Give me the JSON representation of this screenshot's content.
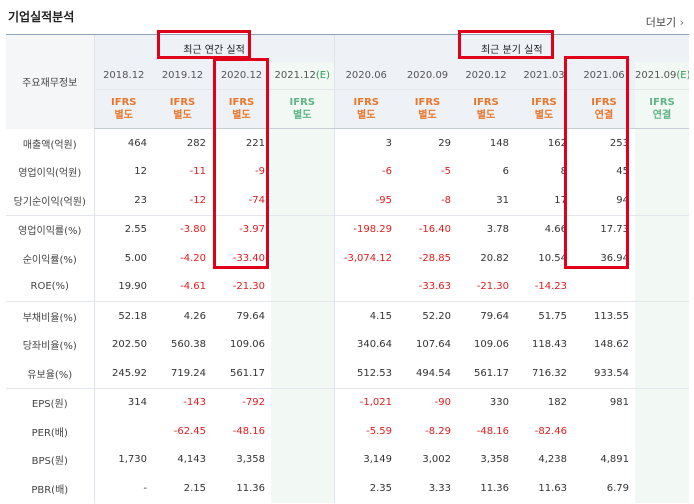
{
  "page": {
    "title": "기업실적분석",
    "more": "더보기"
  },
  "header": {
    "row_label": "주요재무정보",
    "annual_title": "최근 연간 실적",
    "quarter_title": "최근 분기 실적",
    "periods": [
      "2018.12",
      "2019.12",
      "2020.12",
      "2021.12",
      "2020.06",
      "2020.09",
      "2020.12",
      "2021.03",
      "2021.06",
      "2021.09"
    ],
    "estimate_marks": [
      "",
      "",
      "",
      "(E)",
      "",
      "",
      "",
      "",
      "",
      "(E)"
    ],
    "ifrs_top": [
      "IFRS",
      "IFRS",
      "IFRS",
      "IFRS",
      "IFRS",
      "IFRS",
      "IFRS",
      "IFRS",
      "IFRS",
      "IFRS"
    ],
    "ifrs_bottom": [
      "별도",
      "별도",
      "별도",
      "별도",
      "별도",
      "별도",
      "별도",
      "별도",
      "연결",
      "연결"
    ]
  },
  "rows": [
    {
      "label": "매출액(억원)",
      "values": [
        "464",
        "282",
        "221",
        "",
        "3",
        "29",
        "148",
        "162",
        "253",
        ""
      ]
    },
    {
      "label": "영업이익(억원)",
      "values": [
        "12",
        "-11",
        "-9",
        "",
        "-6",
        "-5",
        "6",
        "8",
        "45",
        ""
      ]
    },
    {
      "label": "당기순이익(억원)",
      "values": [
        "23",
        "-12",
        "-74",
        "",
        "-95",
        "-8",
        "31",
        "17",
        "94",
        ""
      ]
    },
    {
      "label": "영업이익률(%)",
      "values": [
        "2.55",
        "-3.80",
        "-3.97",
        "",
        "-198.29",
        "-16.40",
        "3.78",
        "4.66",
        "17.73",
        ""
      ]
    },
    {
      "label": "순이익률(%)",
      "values": [
        "5.00",
        "-4.20",
        "-33.40",
        "",
        "-3,074.12",
        "-28.85",
        "20.82",
        "10.54",
        "36.94",
        ""
      ]
    },
    {
      "label": "ROE(%)",
      "values": [
        "19.90",
        "-4.61",
        "-21.30",
        "",
        "",
        "-33.63",
        "-21.30",
        "-14.23",
        "",
        ""
      ]
    },
    {
      "label": "부채비율(%)",
      "values": [
        "52.18",
        "4.26",
        "79.64",
        "",
        "4.15",
        "52.20",
        "79.64",
        "51.75",
        "113.55",
        ""
      ]
    },
    {
      "label": "당좌비율(%)",
      "values": [
        "202.50",
        "560.38",
        "109.06",
        "",
        "340.64",
        "107.64",
        "109.06",
        "118.43",
        "148.62",
        ""
      ]
    },
    {
      "label": "유보율(%)",
      "values": [
        "245.92",
        "719.24",
        "561.17",
        "",
        "512.53",
        "494.54",
        "561.17",
        "716.32",
        "933.54",
        ""
      ]
    },
    {
      "label": "EPS(원)",
      "values": [
        "314",
        "-143",
        "-792",
        "",
        "-1,021",
        "-90",
        "330",
        "182",
        "981",
        ""
      ]
    },
    {
      "label": "PER(배)",
      "values": [
        "",
        "-62.45",
        "-48.16",
        "",
        "-5.59",
        "-8.29",
        "-48.16",
        "-82.46",
        "",
        ""
      ]
    },
    {
      "label": "BPS(원)",
      "values": [
        "1,730",
        "4,143",
        "3,358",
        "",
        "3,149",
        "3,002",
        "3,358",
        "4,238",
        "4,891",
        ""
      ]
    },
    {
      "label": "PBR(배)",
      "values": [
        "-",
        "2.15",
        "11.36",
        "",
        "2.35",
        "3.33",
        "11.36",
        "11.63",
        "6.79",
        ""
      ]
    }
  ],
  "colors": {
    "negative": "#e21c1c",
    "ifrs": "#e8772c",
    "estimate": "#2f9a57",
    "highlight": "#e0001a"
  }
}
